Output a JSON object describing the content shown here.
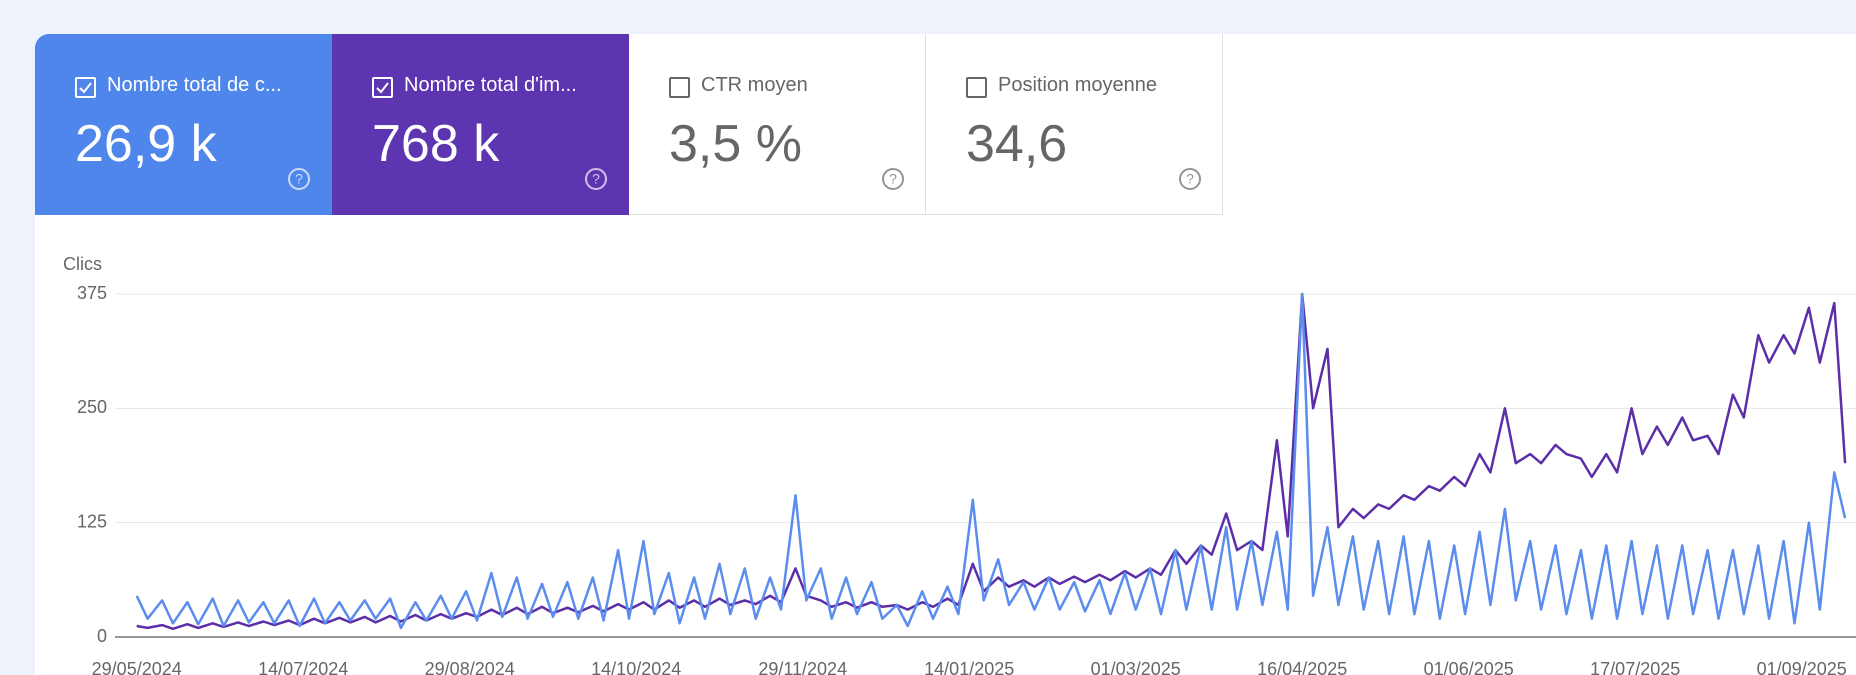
{
  "cards": [
    {
      "label": "Nombre total de c...",
      "value": "26,9 k",
      "checked": true,
      "color": "#4f86ec"
    },
    {
      "label": "Nombre total d'im...",
      "value": "768 k",
      "checked": true,
      "color": "#5e35b1"
    },
    {
      "label": "CTR moyen",
      "value": "3,5 %",
      "checked": false,
      "color": "#ffffff"
    },
    {
      "label": "Position moyenne",
      "value": "34,6",
      "checked": false,
      "color": "#ffffff"
    }
  ],
  "chart_data": {
    "type": "line",
    "y_label": "Clics",
    "x": [
      "29/05/2024",
      "01/06/2024",
      "05/06/2024",
      "08/06/2024",
      "12/06/2024",
      "15/06/2024",
      "19/06/2024",
      "22/06/2024",
      "26/06/2024",
      "29/06/2024",
      "03/07/2024",
      "06/07/2024",
      "10/07/2024",
      "13/07/2024",
      "17/07/2024",
      "20/07/2024",
      "24/07/2024",
      "27/07/2024",
      "31/07/2024",
      "03/08/2024",
      "07/08/2024",
      "10/08/2024",
      "14/08/2024",
      "17/08/2024",
      "21/08/2024",
      "24/08/2024",
      "28/08/2024",
      "31/08/2024",
      "04/09/2024",
      "07/09/2024",
      "11/09/2024",
      "14/09/2024",
      "18/09/2024",
      "21/09/2024",
      "25/09/2024",
      "28/09/2024",
      "02/10/2024",
      "05/10/2024",
      "09/10/2024",
      "12/10/2024",
      "16/10/2024",
      "19/10/2024",
      "23/10/2024",
      "26/10/2024",
      "30/10/2024",
      "02/11/2024",
      "06/11/2024",
      "09/11/2024",
      "13/11/2024",
      "16/11/2024",
      "20/11/2024",
      "23/11/2024",
      "27/11/2024",
      "30/11/2024",
      "04/12/2024",
      "07/12/2024",
      "11/12/2024",
      "14/12/2024",
      "18/12/2024",
      "21/12/2024",
      "25/12/2024",
      "28/12/2024",
      "01/01/2025",
      "04/01/2025",
      "08/01/2025",
      "11/01/2025",
      "15/01/2025",
      "18/01/2025",
      "22/01/2025",
      "25/01/2025",
      "29/01/2025",
      "01/02/2025",
      "05/02/2025",
      "08/02/2025",
      "12/02/2025",
      "15/02/2025",
      "19/02/2025",
      "22/02/2025",
      "26/02/2025",
      "01/03/2025",
      "05/03/2025",
      "08/03/2025",
      "12/03/2025",
      "15/03/2025",
      "19/03/2025",
      "22/03/2025",
      "26/03/2025",
      "29/03/2025",
      "02/04/2025",
      "05/04/2025",
      "09/04/2025",
      "12/04/2025",
      "16/04/2025",
      "19/04/2025",
      "23/04/2025",
      "26/04/2025",
      "30/04/2025",
      "03/05/2025",
      "07/05/2025",
      "10/05/2025",
      "14/05/2025",
      "17/05/2025",
      "21/05/2025",
      "24/05/2025",
      "28/05/2025",
      "31/05/2025",
      "04/06/2025",
      "07/06/2025",
      "11/06/2025",
      "14/06/2025",
      "18/06/2025",
      "21/06/2025",
      "25/06/2025",
      "28/06/2025",
      "02/07/2025",
      "05/07/2025",
      "09/07/2025",
      "12/07/2025",
      "16/07/2025",
      "19/07/2025",
      "23/07/2025",
      "26/07/2025",
      "30/07/2025",
      "02/08/2025",
      "06/08/2025",
      "09/08/2025",
      "13/08/2025",
      "16/08/2025",
      "20/08/2025",
      "23/08/2025",
      "27/08/2025",
      "30/08/2025",
      "03/09/2025",
      "06/09/2025",
      "10/09/2025",
      "13/09/2025"
    ],
    "series": [
      {
        "color": "#5c2fa8",
        "axis": "y2",
        "values": [
          12,
          10,
          13,
          9,
          14,
          10,
          15,
          11,
          16,
          12,
          17,
          13,
          18,
          13,
          20,
          15,
          21,
          16,
          22,
          16,
          23,
          17,
          24,
          18,
          25,
          20,
          26,
          22,
          30,
          24,
          32,
          25,
          33,
          26,
          32,
          27,
          34,
          28,
          36,
          30,
          38,
          30,
          40,
          32,
          40,
          33,
          42,
          35,
          40,
          36,
          45,
          38,
          75,
          45,
          40,
          33,
          38,
          32,
          38,
          33,
          35,
          30,
          38,
          33,
          42,
          35,
          80,
          50,
          65,
          55,
          62,
          55,
          65,
          58,
          66,
          60,
          68,
          62,
          72,
          65,
          75,
          68,
          95,
          80,
          100,
          90,
          135,
          95,
          105,
          95,
          215,
          110,
          375,
          250,
          315,
          120,
          140,
          130,
          145,
          140,
          155,
          150,
          165,
          160,
          175,
          165,
          200,
          180,
          250,
          190,
          200,
          190,
          210,
          200,
          195,
          175,
          200,
          180,
          250,
          200,
          230,
          210,
          240,
          215,
          220,
          200,
          265,
          240,
          330,
          300,
          330,
          310,
          360,
          300,
          365,
          190
        ]
      },
      {
        "color": "#5b8def",
        "values": [
          45,
          20,
          40,
          15,
          38,
          14,
          42,
          12,
          40,
          16,
          38,
          15,
          40,
          12,
          42,
          15,
          38,
          18,
          40,
          20,
          42,
          10,
          38,
          18,
          45,
          20,
          50,
          18,
          70,
          22,
          65,
          20,
          58,
          22,
          60,
          20,
          65,
          18,
          95,
          20,
          105,
          25,
          70,
          15,
          65,
          20,
          80,
          25,
          75,
          20,
          65,
          30,
          155,
          40,
          75,
          20,
          65,
          25,
          60,
          20,
          35,
          12,
          50,
          20,
          55,
          25,
          150,
          40,
          85,
          35,
          60,
          30,
          65,
          30,
          60,
          28,
          62,
          25,
          70,
          30,
          75,
          25,
          95,
          30,
          100,
          30,
          120,
          30,
          105,
          35,
          115,
          30,
          375,
          45,
          120,
          35,
          110,
          30,
          105,
          25,
          110,
          25,
          105,
          20,
          100,
          25,
          115,
          35,
          140,
          40,
          105,
          30,
          100,
          25,
          95,
          20,
          100,
          20,
          105,
          25,
          100,
          20,
          100,
          25,
          95,
          20,
          95,
          25,
          100,
          20,
          105,
          15,
          125,
          30,
          180,
          130
        ]
      }
    ],
    "xlim": [
      "23/05/2024",
      "16/09/2025"
    ],
    "xticks": [
      "29/05/2024",
      "14/07/2024",
      "29/08/2024",
      "14/10/2024",
      "29/11/2024",
      "14/01/2025",
      "01/03/2025",
      "16/04/2025",
      "01/06/2025",
      "17/07/2025",
      "01/09/2025"
    ],
    "ylim": [
      0,
      375
    ],
    "yticks": [
      0,
      125,
      250,
      375
    ],
    "y2lim": [
      0,
      375
    ],
    "grid": true
  }
}
